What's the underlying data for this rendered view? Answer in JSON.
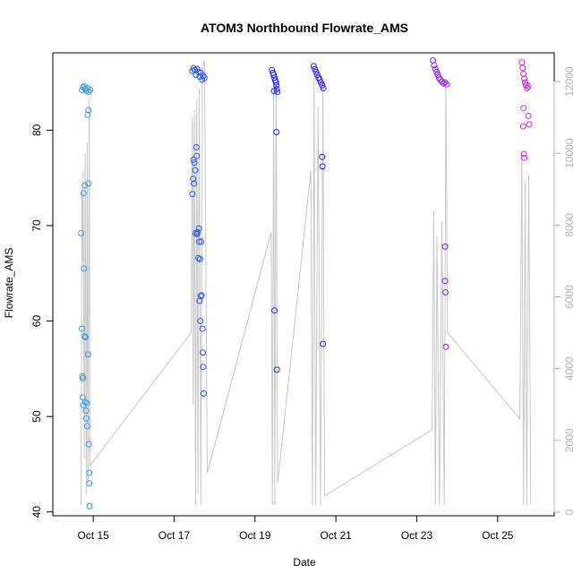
{
  "chart_data": {
    "type": "scatter",
    "title": "ATOM3 Northbound Flowrate_AMS",
    "xlabel": "Date",
    "ylabel": "Flowrate_AMS",
    "x_unit": "days (October)",
    "xlim": [
      14.0,
      26.4
    ],
    "ylim": [
      39.6,
      88.1
    ],
    "x_ticks": [
      15,
      17,
      19,
      21,
      23,
      25
    ],
    "x_tick_labels": [
      "Oct 15",
      "Oct 17",
      "Oct 19",
      "Oct 21",
      "Oct 23",
      "Oct 25"
    ],
    "y_ticks": [
      40,
      50,
      60,
      70,
      80
    ],
    "y_tick_labels": [
      "40",
      "50",
      "60",
      "70",
      "80"
    ],
    "y2_ticks": [
      0,
      2000,
      4000,
      6000,
      8000,
      10000,
      12000
    ],
    "y2_tick_labels": [
      "0",
      "2000",
      "4000",
      "6000",
      "8000",
      "10000",
      "12000"
    ],
    "y2lim": [
      -100,
      12800
    ],
    "grid": false,
    "legend": "none",
    "colors": {
      "secondary_line": "#c8c8c8",
      "right_axis": "#b3b3b3",
      "point_start": "#3daee8",
      "point_mid": "#1a1aff",
      "point_end": "#ee22ee"
    },
    "series": [
      {
        "values": [
          {
            "x": 14.7,
            "y": 69.2
          },
          {
            "x": 14.72,
            "y": 59.2
          },
          {
            "x": 14.73,
            "y": 54.2
          },
          {
            "x": 14.74,
            "y": 54.0
          },
          {
            "x": 14.74,
            "y": 52.0
          },
          {
            "x": 14.75,
            "y": 51.2
          },
          {
            "x": 14.76,
            "y": 73.4
          },
          {
            "x": 14.77,
            "y": 65.5
          },
          {
            "x": 14.78,
            "y": 58.4
          },
          {
            "x": 14.79,
            "y": 74.2
          },
          {
            "x": 14.8,
            "y": 51.5
          },
          {
            "x": 14.81,
            "y": 58.3
          },
          {
            "x": 14.82,
            "y": 50.6
          },
          {
            "x": 14.83,
            "y": 49.8
          },
          {
            "x": 14.84,
            "y": 51.4
          },
          {
            "x": 14.85,
            "y": 49.0
          },
          {
            "x": 14.86,
            "y": 81.6
          },
          {
            "x": 14.87,
            "y": 56.5
          },
          {
            "x": 14.88,
            "y": 82.1
          },
          {
            "x": 14.88,
            "y": 74.4
          },
          {
            "x": 14.89,
            "y": 47.1
          },
          {
            "x": 14.9,
            "y": 44.1
          },
          {
            "x": 14.9,
            "y": 43.0
          },
          {
            "x": 14.91,
            "y": 40.6
          },
          {
            "x": 14.72,
            "y": 84.2
          },
          {
            "x": 14.75,
            "y": 84.5
          },
          {
            "x": 14.78,
            "y": 84.6
          },
          {
            "x": 14.8,
            "y": 84.3
          },
          {
            "x": 14.83,
            "y": 84.1
          },
          {
            "x": 14.86,
            "y": 84.4
          },
          {
            "x": 14.89,
            "y": 84.0
          },
          {
            "x": 14.92,
            "y": 84.2
          },
          {
            "x": 17.45,
            "y": 73.3
          },
          {
            "x": 17.47,
            "y": 74.9
          },
          {
            "x": 17.48,
            "y": 76.9
          },
          {
            "x": 17.49,
            "y": 74.4
          },
          {
            "x": 17.5,
            "y": 76.6
          },
          {
            "x": 17.52,
            "y": 75.8
          },
          {
            "x": 17.53,
            "y": 69.2
          },
          {
            "x": 17.55,
            "y": 78.2
          },
          {
            "x": 17.56,
            "y": 77.3
          },
          {
            "x": 17.57,
            "y": 69.1
          },
          {
            "x": 17.58,
            "y": 69.3
          },
          {
            "x": 17.6,
            "y": 66.6
          },
          {
            "x": 17.61,
            "y": 69.7
          },
          {
            "x": 17.62,
            "y": 68.3
          },
          {
            "x": 17.63,
            "y": 62.1
          },
          {
            "x": 17.64,
            "y": 66.5
          },
          {
            "x": 17.65,
            "y": 60.0
          },
          {
            "x": 17.66,
            "y": 62.6
          },
          {
            "x": 17.67,
            "y": 68.3
          },
          {
            "x": 17.68,
            "y": 62.7
          },
          {
            "x": 17.7,
            "y": 59.2
          },
          {
            "x": 17.71,
            "y": 56.7
          },
          {
            "x": 17.72,
            "y": 55.2
          },
          {
            "x": 17.73,
            "y": 52.4
          },
          {
            "x": 17.45,
            "y": 86.2
          },
          {
            "x": 17.48,
            "y": 86.5
          },
          {
            "x": 17.51,
            "y": 86.3
          },
          {
            "x": 17.54,
            "y": 85.8
          },
          {
            "x": 17.57,
            "y": 86.4
          },
          {
            "x": 17.6,
            "y": 86.1
          },
          {
            "x": 17.63,
            "y": 85.6
          },
          {
            "x": 17.66,
            "y": 86.0
          },
          {
            "x": 17.69,
            "y": 85.3
          },
          {
            "x": 17.72,
            "y": 85.7
          },
          {
            "x": 17.75,
            "y": 85.5
          },
          {
            "x": 19.42,
            "y": 86.3
          },
          {
            "x": 19.44,
            "y": 86.0
          },
          {
            "x": 19.46,
            "y": 85.8
          },
          {
            "x": 19.48,
            "y": 85.5
          },
          {
            "x": 19.5,
            "y": 85.2
          },
          {
            "x": 19.52,
            "y": 85.0
          },
          {
            "x": 19.53,
            "y": 84.7
          },
          {
            "x": 19.54,
            "y": 84.3
          },
          {
            "x": 19.47,
            "y": 84.1
          },
          {
            "x": 19.55,
            "y": 84.0
          },
          {
            "x": 19.48,
            "y": 61.1
          },
          {
            "x": 19.53,
            "y": 79.8
          },
          {
            "x": 19.54,
            "y": 54.9
          },
          {
            "x": 20.45,
            "y": 86.7
          },
          {
            "x": 20.48,
            "y": 86.4
          },
          {
            "x": 20.51,
            "y": 86.1
          },
          {
            "x": 20.54,
            "y": 85.8
          },
          {
            "x": 20.57,
            "y": 85.5
          },
          {
            "x": 20.6,
            "y": 85.3
          },
          {
            "x": 20.63,
            "y": 85.0
          },
          {
            "x": 20.66,
            "y": 84.7
          },
          {
            "x": 20.69,
            "y": 84.4
          },
          {
            "x": 20.66,
            "y": 77.2
          },
          {
            "x": 20.67,
            "y": 76.2
          },
          {
            "x": 20.68,
            "y": 57.6
          },
          {
            "x": 23.4,
            "y": 87.3
          },
          {
            "x": 23.43,
            "y": 86.8
          },
          {
            "x": 23.46,
            "y": 86.4
          },
          {
            "x": 23.49,
            "y": 86.1
          },
          {
            "x": 23.52,
            "y": 85.8
          },
          {
            "x": 23.55,
            "y": 85.5
          },
          {
            "x": 23.58,
            "y": 85.3
          },
          {
            "x": 23.62,
            "y": 85.1
          },
          {
            "x": 23.66,
            "y": 84.9
          },
          {
            "x": 23.7,
            "y": 85.0
          },
          {
            "x": 23.74,
            "y": 84.8
          },
          {
            "x": 23.7,
            "y": 67.8
          },
          {
            "x": 23.7,
            "y": 64.2
          },
          {
            "x": 23.71,
            "y": 63.0
          },
          {
            "x": 23.72,
            "y": 57.3
          },
          {
            "x": 25.6,
            "y": 87.1
          },
          {
            "x": 25.62,
            "y": 86.5
          },
          {
            "x": 25.64,
            "y": 85.9
          },
          {
            "x": 25.66,
            "y": 85.4
          },
          {
            "x": 25.68,
            "y": 85.0
          },
          {
            "x": 25.7,
            "y": 84.7
          },
          {
            "x": 25.73,
            "y": 84.4
          },
          {
            "x": 25.76,
            "y": 84.6
          },
          {
            "x": 25.64,
            "y": 82.3
          },
          {
            "x": 25.63,
            "y": 80.4
          },
          {
            "x": 25.76,
            "y": 81.5
          },
          {
            "x": 25.78,
            "y": 80.6
          },
          {
            "x": 25.65,
            "y": 77.5
          },
          {
            "x": 25.66,
            "y": 77.1
          }
        ]
      },
      {
        "axis": "right",
        "values": [
          {
            "x": 14.7,
            "y": 200
          },
          {
            "x": 14.72,
            "y": 9000
          },
          {
            "x": 14.74,
            "y": 7000
          },
          {
            "x": 14.75,
            "y": 9500
          },
          {
            "x": 14.78,
            "y": 1500
          },
          {
            "x": 14.8,
            "y": 10000
          },
          {
            "x": 14.83,
            "y": 500
          },
          {
            "x": 14.85,
            "y": 10300
          },
          {
            "x": 14.87,
            "y": 800
          },
          {
            "x": 14.9,
            "y": 11500
          },
          {
            "x": 14.92,
            "y": 1300
          },
          {
            "x": 17.42,
            "y": 5000
          },
          {
            "x": 17.45,
            "y": 11000
          },
          {
            "x": 17.47,
            "y": 3000
          },
          {
            "x": 17.5,
            "y": 11200
          },
          {
            "x": 17.53,
            "y": 200
          },
          {
            "x": 17.56,
            "y": 11500
          },
          {
            "x": 17.59,
            "y": 500
          },
          {
            "x": 17.62,
            "y": 11800
          },
          {
            "x": 17.66,
            "y": 200
          },
          {
            "x": 17.7,
            "y": 12300
          },
          {
            "x": 17.75,
            "y": 12600
          },
          {
            "x": 17.82,
            "y": 1100
          },
          {
            "x": 19.4,
            "y": 7800
          },
          {
            "x": 19.43,
            "y": 200
          },
          {
            "x": 19.46,
            "y": 11900
          },
          {
            "x": 19.49,
            "y": 200
          },
          {
            "x": 19.52,
            "y": 12100
          },
          {
            "x": 19.56,
            "y": 800
          },
          {
            "x": 20.38,
            "y": 9500
          },
          {
            "x": 20.42,
            "y": 200
          },
          {
            "x": 20.46,
            "y": 12100
          },
          {
            "x": 20.5,
            "y": 200
          },
          {
            "x": 20.56,
            "y": 11300
          },
          {
            "x": 20.62,
            "y": 200
          },
          {
            "x": 20.68,
            "y": 12000
          },
          {
            "x": 20.72,
            "y": 450
          },
          {
            "x": 23.38,
            "y": 2300
          },
          {
            "x": 23.42,
            "y": 8400
          },
          {
            "x": 23.46,
            "y": 200
          },
          {
            "x": 23.5,
            "y": 7700
          },
          {
            "x": 23.56,
            "y": 200
          },
          {
            "x": 23.62,
            "y": 8100
          },
          {
            "x": 23.68,
            "y": 200
          },
          {
            "x": 23.72,
            "y": 12000
          },
          {
            "x": 23.76,
            "y": 5000
          },
          {
            "x": 25.55,
            "y": 2600
          },
          {
            "x": 25.6,
            "y": 10000
          },
          {
            "x": 25.64,
            "y": 200
          },
          {
            "x": 25.68,
            "y": 9200
          },
          {
            "x": 25.72,
            "y": 200
          },
          {
            "x": 25.77,
            "y": 9400
          },
          {
            "x": 25.82,
            "y": 200
          }
        ]
      }
    ]
  }
}
